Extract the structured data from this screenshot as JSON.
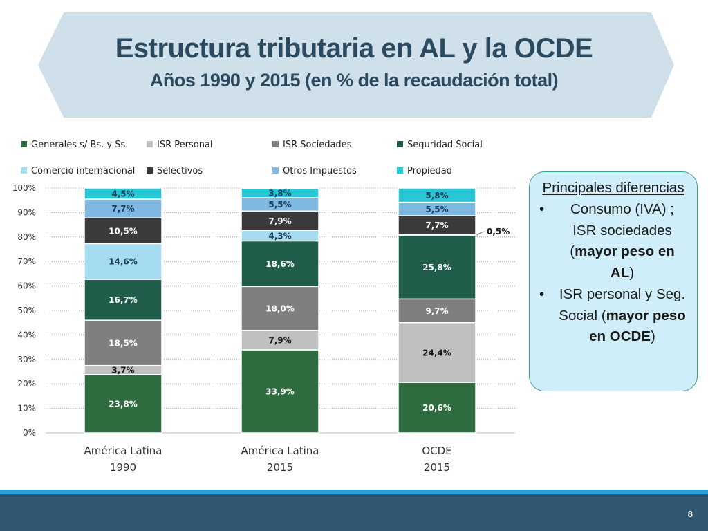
{
  "slide": {
    "title": "Estructura tributaria en AL y la OCDE",
    "subtitle": "Años 1990 y 2015 (en % de la recaudación total)",
    "page_number": "8"
  },
  "notes": {
    "heading": "Principales diferencias",
    "bullet_char": "•",
    "bullets": [
      {
        "text": "Consumo (IVA) ; ISR sociedades (",
        "bold": "mayor peso en AL",
        "close": ")"
      },
      {
        "text": "ISR personal y Seg. Social (",
        "bold": "mayor peso en OCDE",
        "close": ")"
      }
    ]
  },
  "colors": {
    "banner_fill": "#cfe0ea",
    "title_text": "#2b4a60",
    "footer_bar": "#2f5772",
    "footer_stripe": "#2a9fd8"
  },
  "chart_data": {
    "type": "bar",
    "stacked": true,
    "title": "",
    "xlabel": "",
    "ylabel": "",
    "ylim": [
      0,
      100
    ],
    "yticks": [
      "0%",
      "10%",
      "20%",
      "30%",
      "40%",
      "50%",
      "60%",
      "70%",
      "80%",
      "90%",
      "100%"
    ],
    "grid": true,
    "legend_position": "top",
    "categories": [
      [
        "América Latina",
        "1990"
      ],
      [
        "América Latina",
        "2015"
      ],
      [
        "OCDE",
        "2015"
      ]
    ],
    "series": [
      {
        "name": "Generales s/ Bs. y Ss.",
        "color": "#2e6b3e",
        "label_color": "#ffffff",
        "values": [
          23.8,
          33.9,
          20.6
        ],
        "labels": [
          "23,8%",
          "33,9%",
          "20,6%"
        ]
      },
      {
        "name": "ISR Personal",
        "color": "#c0c0c0",
        "label_color": "#1a1a1a",
        "values": [
          3.7,
          7.9,
          24.4
        ],
        "labels": [
          "3,7%",
          "7,9%",
          "24,4%"
        ]
      },
      {
        "name": "ISR Sociedades",
        "color": "#7f7f7f",
        "label_color": "#ffffff",
        "values": [
          18.5,
          18.0,
          9.7
        ],
        "labels": [
          "18,5%",
          "18,0%",
          "9,7%"
        ]
      },
      {
        "name": "Seguridad Social",
        "color": "#1f5c4a",
        "label_color": "#ffffff",
        "values": [
          16.7,
          18.6,
          25.8
        ],
        "labels": [
          "16,7%",
          "18,6%",
          "25,8%"
        ]
      },
      {
        "name": "Comercio internacional",
        "color": "#a6dcf2",
        "label_color": "#1a3c5a",
        "values": [
          14.6,
          4.3,
          0.5
        ],
        "labels": [
          "14,6%",
          "4,3%",
          "0,5%"
        ]
      },
      {
        "name": "Selectivos",
        "color": "#3a3a3a",
        "label_color": "#ffffff",
        "values": [
          10.5,
          7.9,
          7.7
        ],
        "labels": [
          "10,5%",
          "7,9%",
          "7,7%"
        ]
      },
      {
        "name": "Otros Impuestos",
        "color": "#7fb8e0",
        "label_color": "#1a3c5a",
        "values": [
          7.7,
          5.5,
          5.5
        ],
        "labels": [
          "7,7%",
          "5,5%",
          "5,5%"
        ]
      },
      {
        "name": "Propiedad",
        "color": "#29c6d6",
        "label_color": "#1a3c5a",
        "values": [
          4.5,
          3.8,
          5.8
        ],
        "labels": [
          "4,5%",
          "3,8%",
          "5,8%"
        ]
      }
    ]
  }
}
